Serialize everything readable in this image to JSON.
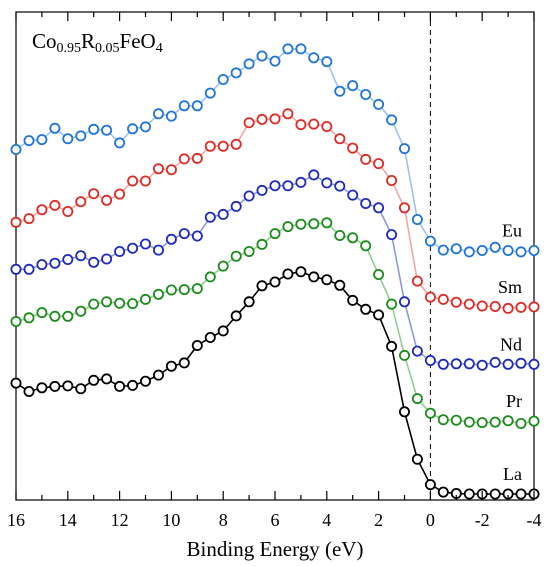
{
  "chart_data": {
    "type": "scatter",
    "title_parts": [
      {
        "text": "Co",
        "sub": false
      },
      {
        "text": "0.95",
        "sub": true
      },
      {
        "text": "R",
        "sub": false
      },
      {
        "text": "0.05",
        "sub": true
      },
      {
        "text": "FeO",
        "sub": false
      },
      {
        "text": "4",
        "sub": true
      }
    ],
    "xlabel": "Binding Energy (eV)",
    "ylabel": "",
    "xlim": [
      16,
      -4
    ],
    "ylim": [
      0,
      100
    ],
    "x_reversed": true,
    "y_ticks_shown": false,
    "grid": false,
    "x_ticks": [
      {
        "value": 16,
        "label": "16"
      },
      {
        "value": 14,
        "label": "14"
      },
      {
        "value": 12,
        "label": "12"
      },
      {
        "value": 10,
        "label": "10"
      },
      {
        "value": 8,
        "label": "8"
      },
      {
        "value": 6,
        "label": "6"
      },
      {
        "value": 4,
        "label": "4"
      },
      {
        "value": 2,
        "label": "2"
      },
      {
        "value": 0,
        "label": "0"
      },
      {
        "value": -2,
        "label": "-2"
      },
      {
        "value": -4,
        "label": "-4"
      }
    ],
    "reference_line": {
      "x": 0,
      "style": "dashed",
      "color": "#333333"
    },
    "x": [
      16.0,
      15.5,
      15.0,
      14.5,
      14.0,
      13.5,
      13.0,
      12.5,
      12.0,
      11.5,
      11.0,
      10.5,
      10.0,
      9.5,
      9.0,
      8.5,
      8.0,
      7.5,
      7.0,
      6.5,
      6.0,
      5.5,
      5.0,
      4.5,
      4.0,
      3.5,
      3.0,
      2.5,
      2.0,
      1.5,
      1.0,
      0.5,
      0.0,
      -0.5,
      -1.0,
      -1.5,
      -2.0,
      -2.5,
      -3.0,
      -3.5,
      -4.0
    ],
    "series": [
      {
        "name": "Eu",
        "color": "#1f74d6",
        "line_color": "#9dc2ef",
        "values": [
          73.3,
          75.2,
          75.4,
          77.8,
          75.6,
          76.2,
          77.6,
          77.4,
          74.7,
          77.7,
          78.1,
          80.9,
          80.4,
          82.6,
          82.6,
          85.3,
          88.2,
          89.6,
          91.5,
          93.2,
          92.1,
          94.7,
          94.7,
          92.8,
          92.0,
          85.7,
          86.9,
          85.0,
          82.9,
          79.6,
          73.5,
          58.4,
          53.8,
          51.9,
          52.2,
          51.5,
          51.8,
          52.5,
          51.8,
          51.5,
          51.8
        ]
      },
      {
        "name": "Sm",
        "color": "#dd2a24",
        "line_color": "#f2a7a5",
        "values": [
          57.8,
          58.6,
          60.5,
          61.4,
          60.1,
          62.2,
          63.9,
          62.5,
          63.8,
          66.6,
          66.6,
          69.2,
          69.0,
          71.3,
          71.4,
          74.0,
          74.0,
          74.4,
          79.0,
          79.7,
          79.8,
          80.9,
          78.6,
          78.7,
          78.2,
          75.6,
          73.6,
          71.2,
          70.3,
          66.7,
          60.9,
          45.3,
          41.9,
          41.4,
          40.8,
          40.4,
          40.0,
          39.9,
          39.5,
          39.7,
          39.8
        ]
      },
      {
        "name": "Nd",
        "color": "#1d2bb8",
        "line_color": "#8f97dc",
        "values": [
          47.8,
          47.8,
          48.8,
          49.1,
          49.9,
          50.7,
          49.3,
          50.0,
          51.6,
          52.3,
          53.2,
          51.9,
          54.2,
          55.4,
          54.9,
          58.9,
          59.5,
          61.2,
          63.4,
          64.6,
          65.6,
          65.6,
          66.3,
          67.9,
          66.2,
          65.5,
          63.6,
          61.8,
          60.9,
          55.2,
          40.9,
          30.4,
          28.4,
          27.6,
          27.7,
          27.7,
          27.4,
          28.0,
          27.6,
          27.8,
          27.6
        ]
      },
      {
        "name": "Pr",
        "color": "#1a8c1a",
        "line_color": "#8fcf8f",
        "values": [
          36.7,
          37.5,
          38.6,
          37.8,
          37.8,
          38.9,
          40.4,
          40.9,
          40.6,
          40.5,
          41.4,
          42.5,
          43.4,
          43.5,
          43.7,
          46.2,
          48.5,
          50.6,
          51.6,
          53.1,
          55.4,
          56.9,
          57.4,
          57.5,
          57.7,
          55.0,
          54.5,
          52.8,
          46.7,
          40.4,
          29.5,
          20.3,
          17.2,
          15.8,
          15.7,
          15.3,
          15.2,
          15.3,
          15.6,
          15.0,
          15.5
        ]
      },
      {
        "name": "La",
        "color": "#000000",
        "line_color": "#000000",
        "values": [
          23.6,
          21.8,
          22.6,
          22.9,
          23.0,
          22.4,
          24.2,
          24.5,
          22.9,
          23.1,
          24.0,
          25.3,
          27.2,
          27.9,
          31.6,
          33.3,
          34.7,
          37.9,
          40.9,
          44.3,
          45.1,
          46.8,
          47.3,
          46.2,
          45.6,
          44.4,
          41.2,
          39.3,
          38.1,
          31.4,
          17.5,
          7.4,
          2.0,
          0.4,
          0.1,
          0.0,
          0.0,
          0.0,
          0.0,
          0.0,
          0.0
        ]
      }
    ]
  }
}
